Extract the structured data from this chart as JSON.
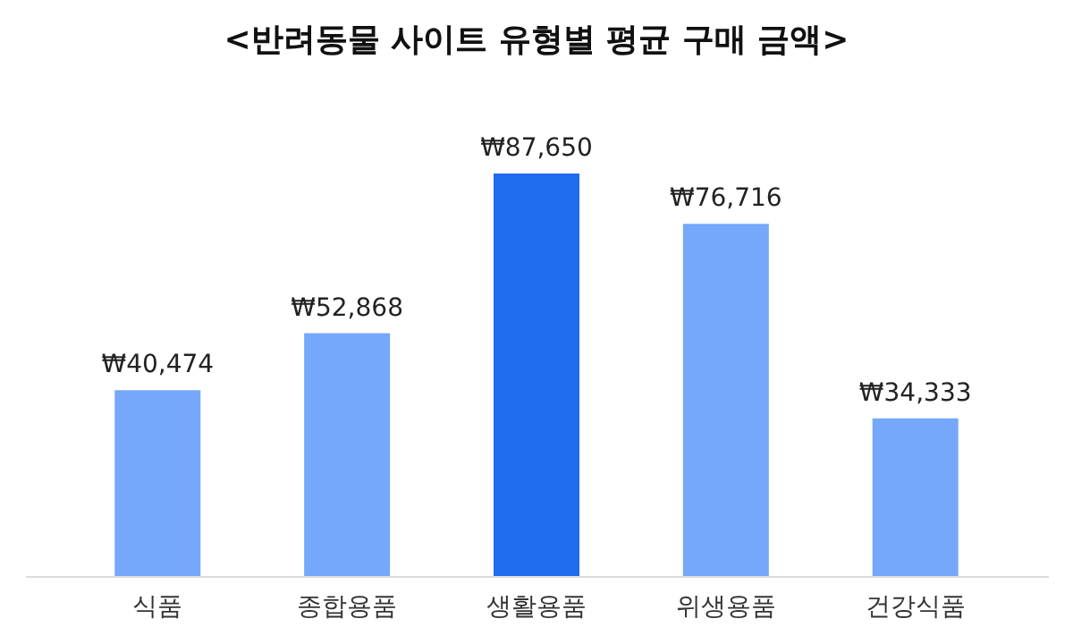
{
  "chart_data": {
    "type": "bar",
    "title": "<반려동물 사이트 유형별 평균 구매 금액>",
    "categories": [
      "식품",
      "종합용품",
      "생활용품",
      "위생용품",
      "건강식품"
    ],
    "values": [
      40474,
      52868,
      87650,
      76716,
      34333
    ],
    "value_labels": [
      "₩40,474",
      "₩52,868",
      "₩87,650",
      "₩76,716",
      "₩34,333"
    ],
    "colors": [
      "#75a7fb",
      "#75a7fb",
      "#1f6cf0",
      "#75a7fb",
      "#75a7fb"
    ]
  }
}
